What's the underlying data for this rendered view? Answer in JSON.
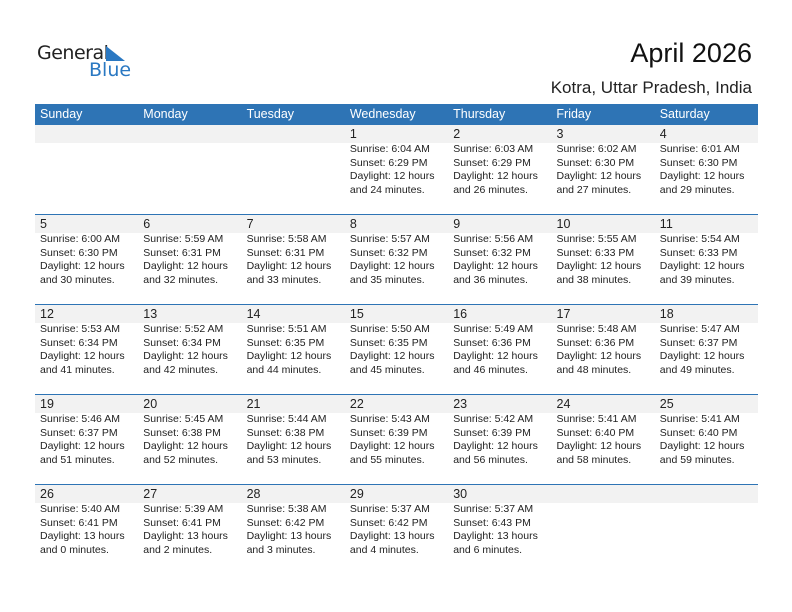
{
  "logo": {
    "text1": "General",
    "text2": "Blue"
  },
  "title": "April 2026",
  "location": "Kotra, Uttar Pradesh, India",
  "colors": {
    "header": "#2e74b5",
    "band": "#f2f2f2"
  },
  "weekdays": [
    "Sunday",
    "Monday",
    "Tuesday",
    "Wednesday",
    "Thursday",
    "Friday",
    "Saturday"
  ],
  "weeks": [
    [
      null,
      null,
      null,
      {
        "day": "1",
        "sunrise": "Sunrise: 6:04 AM",
        "sunset": "Sunset: 6:29 PM",
        "daylight1": "Daylight: 12 hours",
        "daylight2": "and 24 minutes."
      },
      {
        "day": "2",
        "sunrise": "Sunrise: 6:03 AM",
        "sunset": "Sunset: 6:29 PM",
        "daylight1": "Daylight: 12 hours",
        "daylight2": "and 26 minutes."
      },
      {
        "day": "3",
        "sunrise": "Sunrise: 6:02 AM",
        "sunset": "Sunset: 6:30 PM",
        "daylight1": "Daylight: 12 hours",
        "daylight2": "and 27 minutes."
      },
      {
        "day": "4",
        "sunrise": "Sunrise: 6:01 AM",
        "sunset": "Sunset: 6:30 PM",
        "daylight1": "Daylight: 12 hours",
        "daylight2": "and 29 minutes."
      }
    ],
    [
      {
        "day": "5",
        "sunrise": "Sunrise: 6:00 AM",
        "sunset": "Sunset: 6:30 PM",
        "daylight1": "Daylight: 12 hours",
        "daylight2": "and 30 minutes."
      },
      {
        "day": "6",
        "sunrise": "Sunrise: 5:59 AM",
        "sunset": "Sunset: 6:31 PM",
        "daylight1": "Daylight: 12 hours",
        "daylight2": "and 32 minutes."
      },
      {
        "day": "7",
        "sunrise": "Sunrise: 5:58 AM",
        "sunset": "Sunset: 6:31 PM",
        "daylight1": "Daylight: 12 hours",
        "daylight2": "and 33 minutes."
      },
      {
        "day": "8",
        "sunrise": "Sunrise: 5:57 AM",
        "sunset": "Sunset: 6:32 PM",
        "daylight1": "Daylight: 12 hours",
        "daylight2": "and 35 minutes."
      },
      {
        "day": "9",
        "sunrise": "Sunrise: 5:56 AM",
        "sunset": "Sunset: 6:32 PM",
        "daylight1": "Daylight: 12 hours",
        "daylight2": "and 36 minutes."
      },
      {
        "day": "10",
        "sunrise": "Sunrise: 5:55 AM",
        "sunset": "Sunset: 6:33 PM",
        "daylight1": "Daylight: 12 hours",
        "daylight2": "and 38 minutes."
      },
      {
        "day": "11",
        "sunrise": "Sunrise: 5:54 AM",
        "sunset": "Sunset: 6:33 PM",
        "daylight1": "Daylight: 12 hours",
        "daylight2": "and 39 minutes."
      }
    ],
    [
      {
        "day": "12",
        "sunrise": "Sunrise: 5:53 AM",
        "sunset": "Sunset: 6:34 PM",
        "daylight1": "Daylight: 12 hours",
        "daylight2": "and 41 minutes."
      },
      {
        "day": "13",
        "sunrise": "Sunrise: 5:52 AM",
        "sunset": "Sunset: 6:34 PM",
        "daylight1": "Daylight: 12 hours",
        "daylight2": "and 42 minutes."
      },
      {
        "day": "14",
        "sunrise": "Sunrise: 5:51 AM",
        "sunset": "Sunset: 6:35 PM",
        "daylight1": "Daylight: 12 hours",
        "daylight2": "and 44 minutes."
      },
      {
        "day": "15",
        "sunrise": "Sunrise: 5:50 AM",
        "sunset": "Sunset: 6:35 PM",
        "daylight1": "Daylight: 12 hours",
        "daylight2": "and 45 minutes."
      },
      {
        "day": "16",
        "sunrise": "Sunrise: 5:49 AM",
        "sunset": "Sunset: 6:36 PM",
        "daylight1": "Daylight: 12 hours",
        "daylight2": "and 46 minutes."
      },
      {
        "day": "17",
        "sunrise": "Sunrise: 5:48 AM",
        "sunset": "Sunset: 6:36 PM",
        "daylight1": "Daylight: 12 hours",
        "daylight2": "and 48 minutes."
      },
      {
        "day": "18",
        "sunrise": "Sunrise: 5:47 AM",
        "sunset": "Sunset: 6:37 PM",
        "daylight1": "Daylight: 12 hours",
        "daylight2": "and 49 minutes."
      }
    ],
    [
      {
        "day": "19",
        "sunrise": "Sunrise: 5:46 AM",
        "sunset": "Sunset: 6:37 PM",
        "daylight1": "Daylight: 12 hours",
        "daylight2": "and 51 minutes."
      },
      {
        "day": "20",
        "sunrise": "Sunrise: 5:45 AM",
        "sunset": "Sunset: 6:38 PM",
        "daylight1": "Daylight: 12 hours",
        "daylight2": "and 52 minutes."
      },
      {
        "day": "21",
        "sunrise": "Sunrise: 5:44 AM",
        "sunset": "Sunset: 6:38 PM",
        "daylight1": "Daylight: 12 hours",
        "daylight2": "and 53 minutes."
      },
      {
        "day": "22",
        "sunrise": "Sunrise: 5:43 AM",
        "sunset": "Sunset: 6:39 PM",
        "daylight1": "Daylight: 12 hours",
        "daylight2": "and 55 minutes."
      },
      {
        "day": "23",
        "sunrise": "Sunrise: 5:42 AM",
        "sunset": "Sunset: 6:39 PM",
        "daylight1": "Daylight: 12 hours",
        "daylight2": "and 56 minutes."
      },
      {
        "day": "24",
        "sunrise": "Sunrise: 5:41 AM",
        "sunset": "Sunset: 6:40 PM",
        "daylight1": "Daylight: 12 hours",
        "daylight2": "and 58 minutes."
      },
      {
        "day": "25",
        "sunrise": "Sunrise: 5:41 AM",
        "sunset": "Sunset: 6:40 PM",
        "daylight1": "Daylight: 12 hours",
        "daylight2": "and 59 minutes."
      }
    ],
    [
      {
        "day": "26",
        "sunrise": "Sunrise: 5:40 AM",
        "sunset": "Sunset: 6:41 PM",
        "daylight1": "Daylight: 13 hours",
        "daylight2": "and 0 minutes."
      },
      {
        "day": "27",
        "sunrise": "Sunrise: 5:39 AM",
        "sunset": "Sunset: 6:41 PM",
        "daylight1": "Daylight: 13 hours",
        "daylight2": "and 2 minutes."
      },
      {
        "day": "28",
        "sunrise": "Sunrise: 5:38 AM",
        "sunset": "Sunset: 6:42 PM",
        "daylight1": "Daylight: 13 hours",
        "daylight2": "and 3 minutes."
      },
      {
        "day": "29",
        "sunrise": "Sunrise: 5:37 AM",
        "sunset": "Sunset: 6:42 PM",
        "daylight1": "Daylight: 13 hours",
        "daylight2": "and 4 minutes."
      },
      {
        "day": "30",
        "sunrise": "Sunrise: 5:37 AM",
        "sunset": "Sunset: 6:43 PM",
        "daylight1": "Daylight: 13 hours",
        "daylight2": "and 6 minutes."
      },
      null,
      null
    ]
  ]
}
